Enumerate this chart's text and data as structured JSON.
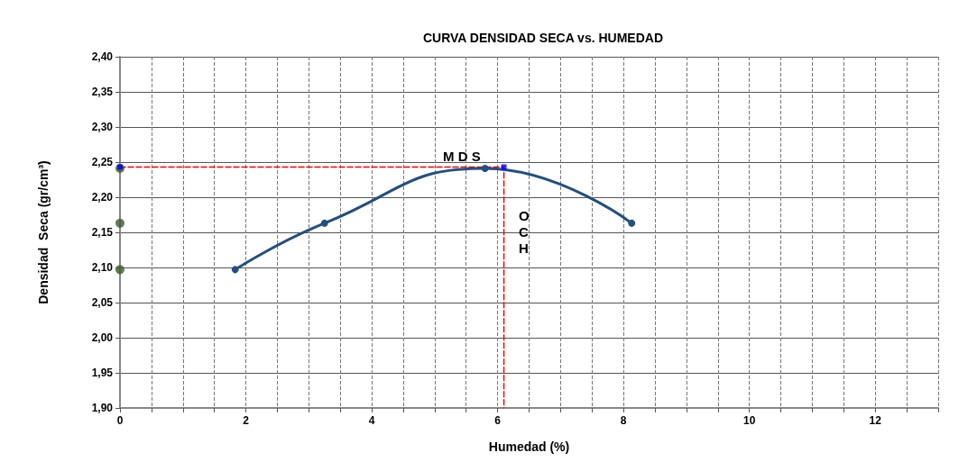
{
  "chart_data": {
    "type": "line",
    "title": "CURVA DENSIDAD SECA vs. HUMEDAD",
    "xlabel": "Humedad (%)",
    "ylabel": "Densidad  Seca (gr/cm³)",
    "xlim": [
      0,
      13
    ],
    "xticks": [
      0,
      {
        "value": 0.5,
        "label": null
      },
      {
        "value": 1,
        "label": null
      },
      {
        "value": 1.5,
        "label": null
      },
      2,
      {
        "value": 2.5,
        "label": null
      },
      {
        "value": 3,
        "label": null
      },
      {
        "value": 3.5,
        "label": null
      },
      4,
      {
        "value": 4.5,
        "label": null
      },
      {
        "value": 5,
        "label": null
      },
      {
        "value": 5.5,
        "label": null
      },
      6,
      {
        "value": 6.5,
        "label": null
      },
      {
        "value": 7,
        "label": null
      },
      {
        "value": 7.5,
        "label": null
      },
      8,
      {
        "value": 8.5,
        "label": null
      },
      {
        "value": 9,
        "label": null
      },
      {
        "value": 9.5,
        "label": null
      },
      10,
      {
        "value": 10.5,
        "label": null
      },
      {
        "value": 11,
        "label": null
      },
      {
        "value": 11.5,
        "label": null
      },
      12,
      {
        "value": 12.5,
        "label": null
      },
      {
        "value": 13,
        "label": null
      }
    ],
    "ylim": [
      1.9,
      2.4
    ],
    "yticks": [
      {
        "value": 1.9,
        "label": "1,90"
      },
      {
        "value": 1.95,
        "label": "1,95"
      },
      {
        "value": 2.0,
        "label": "2,00"
      },
      {
        "value": 2.05,
        "label": "2,05"
      },
      {
        "value": 2.1,
        "label": "2,10"
      },
      {
        "value": 2.15,
        "label": "2,15"
      },
      {
        "value": 2.2,
        "label": "2,20"
      },
      {
        "value": 2.25,
        "label": "2,25"
      },
      {
        "value": 2.3,
        "label": "2,30"
      },
      {
        "value": 2.35,
        "label": "2,35"
      },
      {
        "value": 2.4,
        "label": "2,40"
      }
    ],
    "grid": true,
    "series": [
      {
        "type": "line",
        "color": "#244f7f",
        "marker": "circle",
        "line_style": "solid",
        "x": [
          1.83,
          3.25,
          5.8,
          8.13
        ],
        "values": [
          2.097,
          2.163,
          2.241,
          2.163
        ]
      },
      {
        "type": "scatter",
        "color": "#3d5a2e",
        "marker": "circle",
        "x": [
          0,
          0,
          0
        ],
        "values": [
          2.241,
          2.163,
          2.097
        ]
      },
      {
        "type": "line",
        "color": "#ff0000",
        "marker": "none",
        "line_style": "dashed",
        "x": [
          0,
          6.1,
          6.1
        ],
        "values": [
          2.243,
          2.243,
          1.9
        ]
      },
      {
        "type": "scatter",
        "color": "#0000ff",
        "marker": "square",
        "x": [
          0,
          6.1
        ],
        "values": [
          2.243,
          2.243
        ]
      }
    ],
    "annotations": [
      "M D S",
      "O C H"
    ]
  }
}
